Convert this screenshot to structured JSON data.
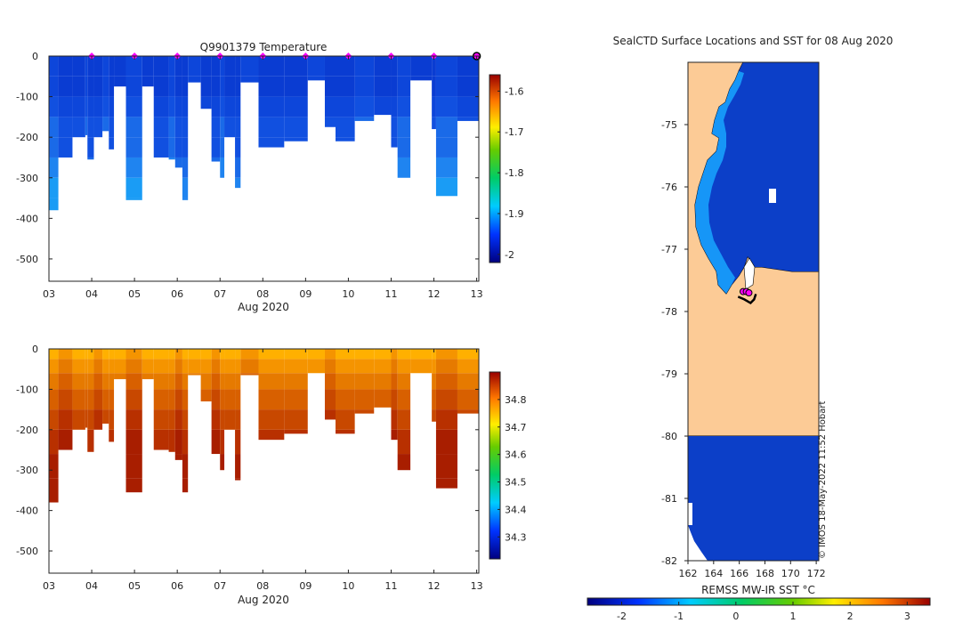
{
  "chart_data": [
    {
      "type": "heatmap",
      "panel": "temperature",
      "title": "Q9901379  Temperature",
      "xlabel": "Aug 2020",
      "ylabel": "",
      "x_tick_labels": [
        "03",
        "04",
        "05",
        "06",
        "07",
        "08",
        "09",
        "10",
        "11",
        "12",
        "13"
      ],
      "xlim": [
        3,
        13.05
      ],
      "ylim": [
        -555,
        0
      ],
      "y_tick_values": [
        0,
        -100,
        -200,
        -300,
        -400,
        -500
      ],
      "y_tick_labels": [
        "0",
        "-100",
        "-200",
        "-300",
        "-400",
        "-500"
      ],
      "colorbar": {
        "range": [
          -2.02,
          -1.56
        ],
        "tick_values": [
          -1.6,
          -1.7,
          -1.8,
          -1.9,
          -2
        ],
        "tick_labels": [
          "-1.6",
          "-1.7",
          "-1.8",
          "-1.9",
          "-2"
        ]
      },
      "marker_color": "#ff00ff",
      "profile_markers_x": [
        4.0,
        5.0,
        6.0,
        7.0,
        8.0,
        9.0,
        10.0,
        11.0,
        12.0,
        13.0
      ]
    },
    {
      "type": "heatmap",
      "panel": "salinity",
      "title": "",
      "xlabel": "Aug 2020",
      "ylabel": "",
      "x_tick_labels": [
        "03",
        "04",
        "05",
        "06",
        "07",
        "08",
        "09",
        "10",
        "11",
        "12",
        "13"
      ],
      "xlim": [
        3,
        13.05
      ],
      "ylim": [
        -555,
        0
      ],
      "y_tick_values": [
        0,
        -100,
        -200,
        -300,
        -400,
        -500
      ],
      "y_tick_labels": [
        "0",
        "-100",
        "-200",
        "-300",
        "-400",
        "-500"
      ],
      "colorbar": {
        "range": [
          34.22,
          34.9
        ],
        "tick_values": [
          34.8,
          34.7,
          34.6,
          34.5,
          34.4,
          34.3
        ],
        "tick_labels": [
          "34.8",
          "34.7",
          "34.6",
          "34.5",
          "34.4",
          "34.3"
        ]
      }
    },
    {
      "type": "heatmap",
      "panel": "map",
      "title": "SealCTD Surface Locations and SST for 08 Aug 2020",
      "xlabel": "",
      "ylabel": "",
      "xlim": [
        162,
        172.2
      ],
      "ylim": [
        -82,
        -74
      ],
      "x_tick_values": [
        162,
        164,
        166,
        168,
        170,
        172
      ],
      "x_tick_labels": [
        "162",
        "164",
        "166",
        "168",
        "170",
        "172"
      ],
      "y_tick_values": [
        -75,
        -76,
        -77,
        -78,
        -79,
        -80,
        -81,
        -82
      ],
      "y_tick_labels": [
        "-75",
        "-76",
        "-77",
        "-78",
        "-79",
        "-80",
        "-81",
        "-82"
      ],
      "land_color": "#fccb96",
      "ocean_color": "#0c3fc8",
      "seal_locations": [
        {
          "lon": 166.3,
          "lat": -77.68
        },
        {
          "lon": 166.55,
          "lat": -77.68
        },
        {
          "lon": 166.75,
          "lat": -77.7
        }
      ],
      "colorbar": {
        "label": "REMSS MW-IR SST °C",
        "range": [
          -2.6,
          3.4
        ],
        "tick_values": [
          -2,
          -1,
          0,
          1,
          2,
          3
        ],
        "tick_labels": [
          "-2",
          "-1",
          "0",
          "1",
          "2",
          "3"
        ]
      },
      "credit": "© IMOS 18-May-2022 11:52 Hobart"
    }
  ]
}
